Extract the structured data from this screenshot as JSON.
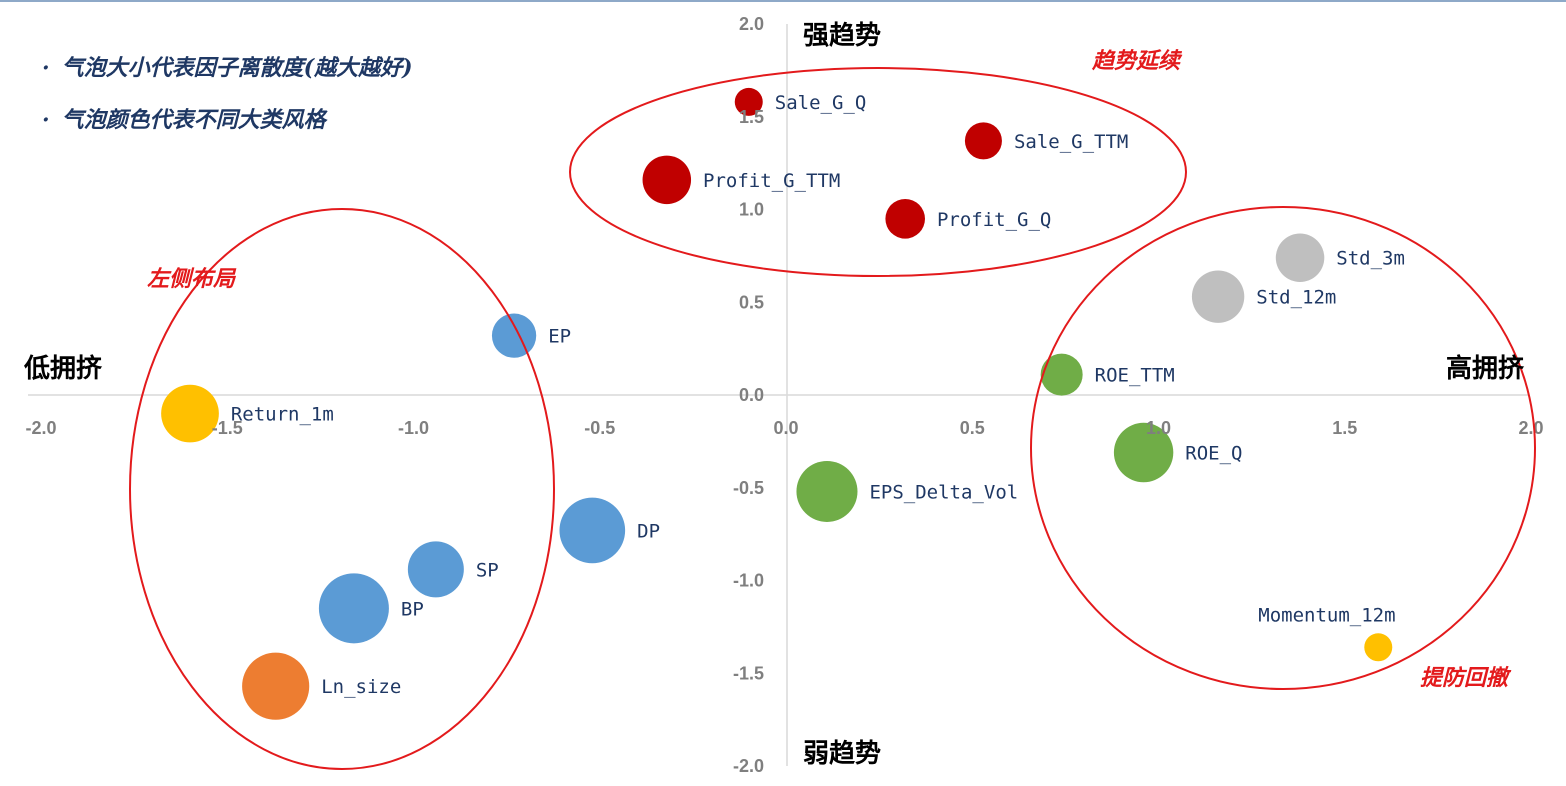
{
  "notes": [
    "气泡大小代表因子离散度(越大越好)",
    "气泡颜色代表不同大类风格"
  ],
  "bullet": "·",
  "quadrant_labels": {
    "top": "强趋势",
    "bottom": "弱趋势",
    "left": "低拥挤",
    "right": "高拥挤"
  },
  "group_labels": {
    "trend": "趋势延续",
    "left": "左侧布局",
    "risk": "提防回撤"
  },
  "colors": {
    "red": "#c00000",
    "blue": "#5b9bd5",
    "orange": "#ed7d31",
    "gold": "#ffc000",
    "green": "#70ad47",
    "gray": "#bfbfbf",
    "outline": "#e31a1c",
    "axis": "#d9d9d9"
  },
  "chart_data": {
    "type": "scatter",
    "xlim": [
      -2.0,
      2.0
    ],
    "ylim": [
      -2.0,
      2.0
    ],
    "x_ticks": [
      "-2.0",
      "-1.5",
      "-1.0",
      "-0.5",
      "0.0",
      "0.5",
      "1.0",
      "1.5",
      "2.0"
    ],
    "y_ticks": [
      "2.0",
      "1.5",
      "1.0",
      "0.5",
      "0.0",
      "-0.5",
      "-1.0",
      "-1.5",
      "-2.0"
    ],
    "points": [
      {
        "name": "Sale_G_Q",
        "x": -0.1,
        "y": 1.58,
        "size": 0.2,
        "color": "red"
      },
      {
        "name": "Sale_G_TTM",
        "x": 0.53,
        "y": 1.37,
        "size": 0.35,
        "color": "red"
      },
      {
        "name": "Profit_G_TTM",
        "x": -0.32,
        "y": 1.16,
        "size": 0.6,
        "color": "red"
      },
      {
        "name": "Profit_G_Q",
        "x": 0.32,
        "y": 0.95,
        "size": 0.4,
        "color": "red"
      },
      {
        "name": "Std_3m",
        "x": 1.38,
        "y": 0.74,
        "size": 0.6,
        "color": "gray"
      },
      {
        "name": "Std_12m",
        "x": 1.16,
        "y": 0.53,
        "size": 0.7,
        "color": "gray"
      },
      {
        "name": "EP",
        "x": -0.73,
        "y": 0.32,
        "size": 0.5,
        "color": "blue"
      },
      {
        "name": "ROE_TTM",
        "x": 0.74,
        "y": 0.11,
        "size": 0.45,
        "color": "green"
      },
      {
        "name": "Return_1m",
        "x": -1.6,
        "y": -0.1,
        "size": 0.85,
        "color": "gold"
      },
      {
        "name": "ROE_Q",
        "x": 0.96,
        "y": -0.31,
        "size": 0.9,
        "color": "green"
      },
      {
        "name": "EPS_Delta_Vol",
        "x": 0.11,
        "y": -0.52,
        "size": 0.95,
        "color": "green"
      },
      {
        "name": "DP",
        "x": -0.52,
        "y": -0.73,
        "size": 1.1,
        "color": "blue"
      },
      {
        "name": "SP",
        "x": -0.94,
        "y": -0.94,
        "size": 0.8,
        "color": "blue"
      },
      {
        "name": "BP",
        "x": -1.16,
        "y": -1.15,
        "size": 1.25,
        "color": "blue"
      },
      {
        "name": "Ln_size",
        "x": -1.37,
        "y": -1.57,
        "size": 1.15,
        "color": "orange"
      },
      {
        "name": "Momentum_12m",
        "x": 1.59,
        "y": -1.36,
        "size": 0.2,
        "color": "gold"
      }
    ]
  }
}
